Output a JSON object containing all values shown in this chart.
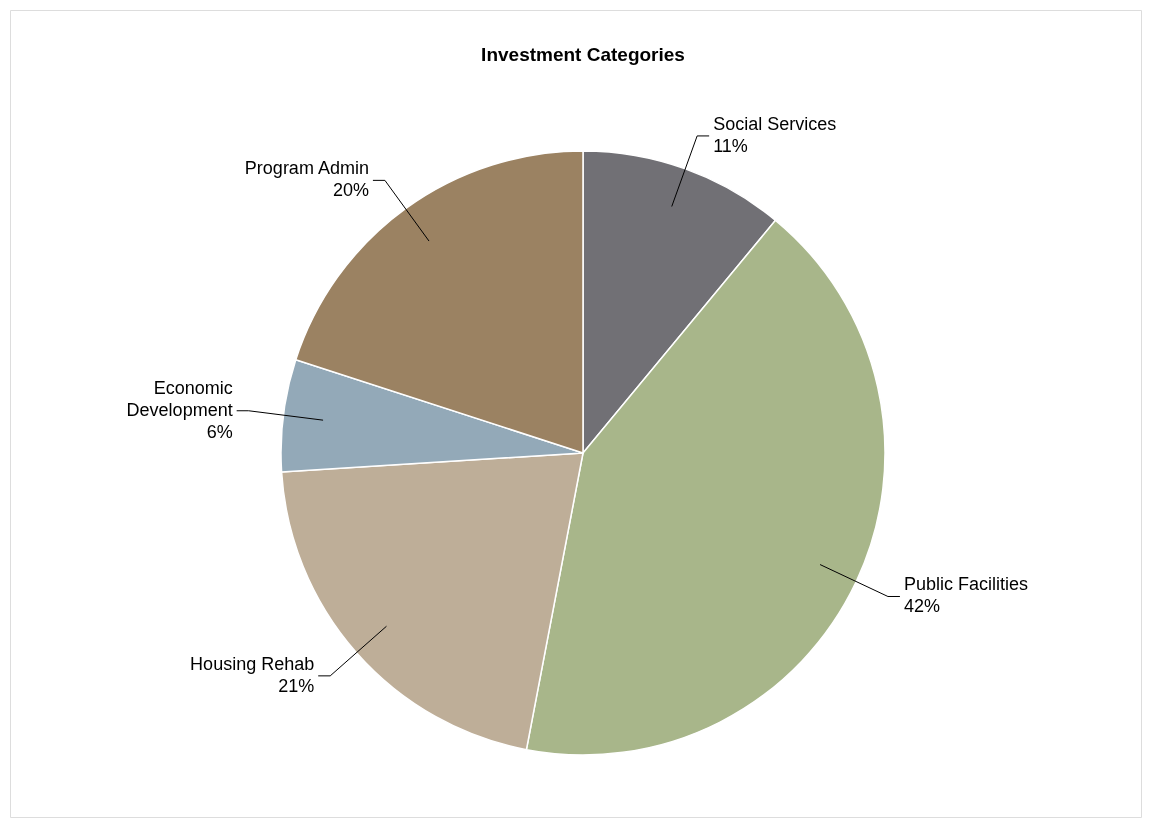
{
  "chart_data": {
    "type": "pie",
    "title": "Investment Categories",
    "categories": [
      "Social Services",
      "Public Facilities",
      "Housing Rehab",
      "Economic Development",
      "Program Admin"
    ],
    "values": [
      11,
      42,
      21,
      6,
      20
    ],
    "value_labels": [
      "11%",
      "42%",
      "21%",
      "6%",
      "20%"
    ],
    "colors": [
      "#717075",
      "#a8b68a",
      "#beae98",
      "#93a9b8",
      "#9b8262"
    ]
  }
}
